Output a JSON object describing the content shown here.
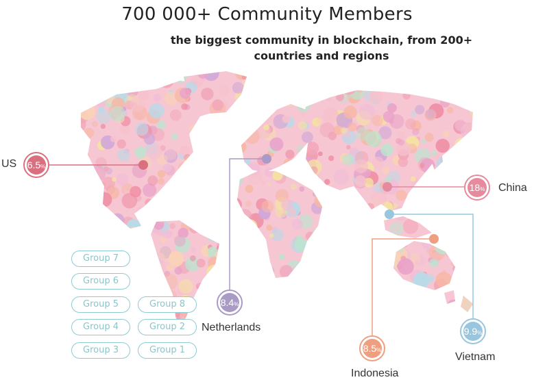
{
  "header": {
    "title": "700 000+  Community Members",
    "subtitle": "the biggest community in blockchain, from 200+ countries and regions"
  },
  "markers": [
    {
      "country": "US",
      "value": "6.5",
      "unit": "%",
      "color": "#d9707f"
    },
    {
      "country": "Netherlands",
      "value": "8.4",
      "unit": "%",
      "color": "#a99ac6"
    },
    {
      "country": "China",
      "value": "18",
      "unit": "%",
      "color": "#e68a9e"
    },
    {
      "country": "Indonesia",
      "value": "8.5",
      "unit": "%",
      "color": "#ee9f80"
    },
    {
      "country": "Vietnam",
      "value": "9.9",
      "unit": "%",
      "color": "#97c6de"
    }
  ],
  "groups": [
    "Group 7",
    "Group 6",
    "Group 5",
    "Group 8",
    "Group 4",
    "Group 2",
    "Group 3",
    "Group 1"
  ],
  "colors": {
    "group_border": "#8ecbd3",
    "map_palette": [
      "#f2a7b9",
      "#ef8fa5",
      "#f6c1cd",
      "#e9a3c9",
      "#cfa6d8",
      "#f7b8a5",
      "#f9d3b6",
      "#f4e3a1",
      "#b7dbe9",
      "#bde3cf",
      "#f0bdd8"
    ]
  }
}
